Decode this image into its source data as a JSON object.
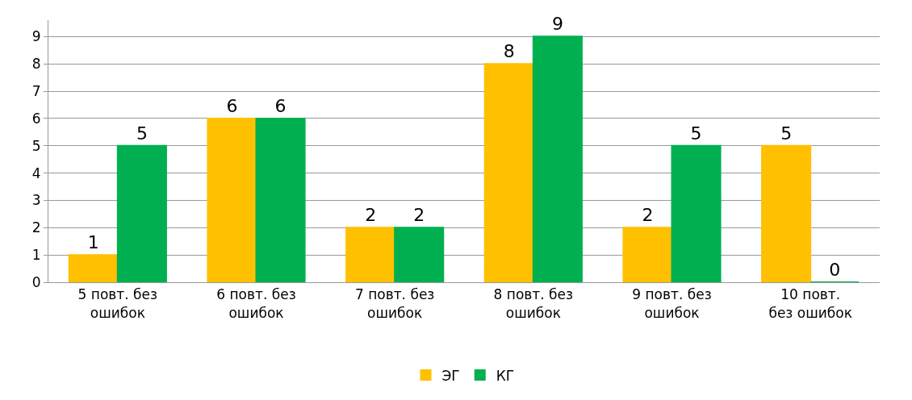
{
  "chart_data": {
    "type": "bar",
    "categories": [
      "5 повт. без ошибок",
      "6 повт. без ошибок",
      "7 повт. без ошибок",
      "8 повт. без ошибок",
      "9 повт. без ошибок",
      "10 повт. без ошибок"
    ],
    "series": [
      {
        "name": "ЭГ",
        "color": "#ffc000",
        "values": [
          1,
          6,
          2,
          8,
          2,
          5
        ]
      },
      {
        "name": "КГ",
        "color": "#00b050",
        "values": [
          5,
          6,
          2,
          9,
          5,
          0
        ]
      }
    ],
    "ylim": [
      0,
      9.6
    ],
    "yticks": [
      0,
      1,
      2,
      3,
      4,
      5,
      6,
      7,
      8,
      9
    ],
    "grid": "y",
    "legend": "bottom",
    "data_labels": true
  }
}
